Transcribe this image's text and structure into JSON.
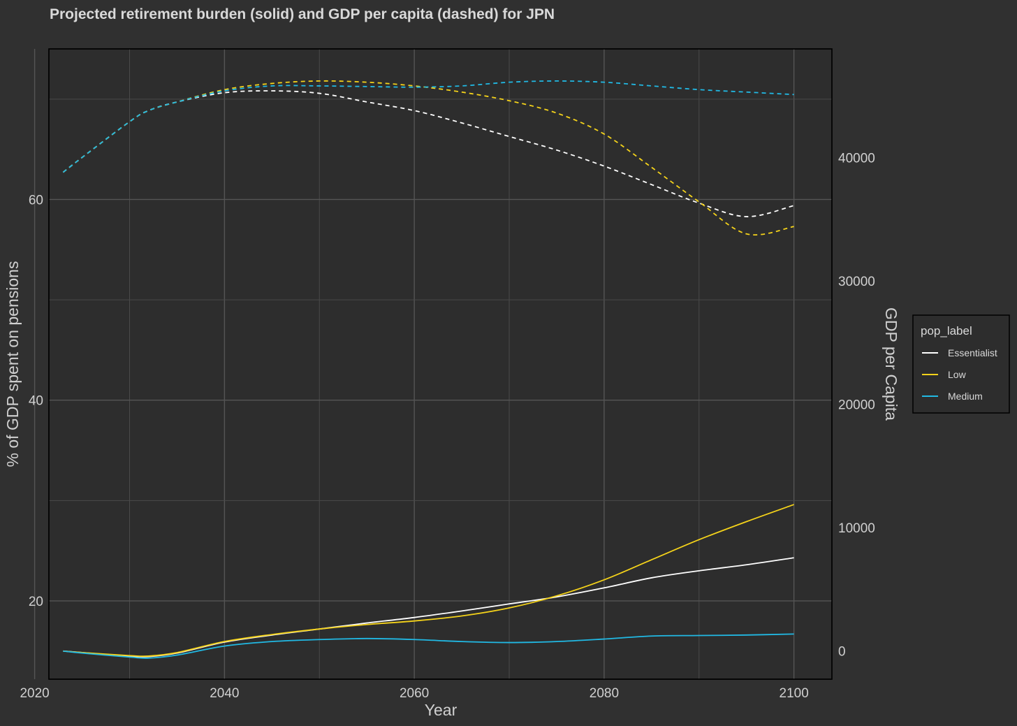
{
  "chart_data": {
    "type": "line",
    "title": "Projected retirement burden (solid) and GDP per capita (dashed) for JPN",
    "xlabel": "Year",
    "ylabel": "% of GDP spent on pensions",
    "y2label": "GDP per Capita",
    "xlim": [
      2021.5,
      2104
    ],
    "ylim": [
      12.2,
      75
    ],
    "y2lim": [
      -2300,
      48800
    ],
    "x_ticks": [
      2020,
      2040,
      2060,
      2080,
      2100
    ],
    "x_tick_labels": [
      "2020",
      "2040",
      "2060",
      "2080",
      "2100"
    ],
    "y_ticks": [
      20,
      40,
      60
    ],
    "y_tick_labels": [
      "20",
      "40",
      "60"
    ],
    "y2_ticks": [
      0,
      10000,
      20000,
      30000,
      40000
    ],
    "y2_tick_labels": [
      "0",
      "10000",
      "20000",
      "30000",
      "40000"
    ],
    "x": [
      2023,
      2025,
      2030,
      2032,
      2035,
      2040,
      2045,
      2050,
      2055,
      2060,
      2065,
      2070,
      2075,
      2080,
      2085,
      2090,
      2095,
      2100
    ],
    "legend_title": "pop_label",
    "legend_position": "right",
    "series": [
      {
        "name": "Essentialist",
        "color": "#ffffff",
        "pension_pct": [
          15.0,
          14.85,
          14.5,
          14.45,
          14.8,
          15.9,
          16.6,
          17.2,
          17.8,
          18.35,
          19.0,
          19.7,
          20.4,
          21.3,
          22.3,
          23.0,
          23.6,
          24.3
        ],
        "gdp_per_capita": [
          38800,
          40000,
          42900,
          43800,
          44500,
          45250,
          45400,
          45200,
          44500,
          43800,
          42800,
          41700,
          40600,
          39300,
          37800,
          36300,
          35200,
          36100
        ]
      },
      {
        "name": "Low",
        "color": "#f5d31a",
        "pension_pct": [
          15.0,
          14.85,
          14.55,
          14.5,
          14.85,
          15.95,
          16.65,
          17.2,
          17.65,
          18.0,
          18.5,
          19.3,
          20.5,
          22.1,
          24.1,
          26.1,
          27.9,
          29.6
        ],
        "gdp_per_capita": [
          38800,
          40000,
          42900,
          43800,
          44500,
          45500,
          46000,
          46200,
          46100,
          45800,
          45300,
          44600,
          43600,
          41900,
          39200,
          36400,
          33800,
          34400
        ]
      },
      {
        "name": "Medium",
        "color": "#21b9e4",
        "pension_pct": [
          15.0,
          14.8,
          14.4,
          14.3,
          14.6,
          15.5,
          15.95,
          16.15,
          16.25,
          16.15,
          15.95,
          15.85,
          15.95,
          16.2,
          16.5,
          16.55,
          16.6,
          16.7
        ],
        "gdp_per_capita": [
          38800,
          40000,
          42900,
          43800,
          44500,
          45400,
          45800,
          45800,
          45750,
          45700,
          45800,
          46100,
          46200,
          46100,
          45800,
          45500,
          45300,
          45100
        ]
      }
    ]
  }
}
